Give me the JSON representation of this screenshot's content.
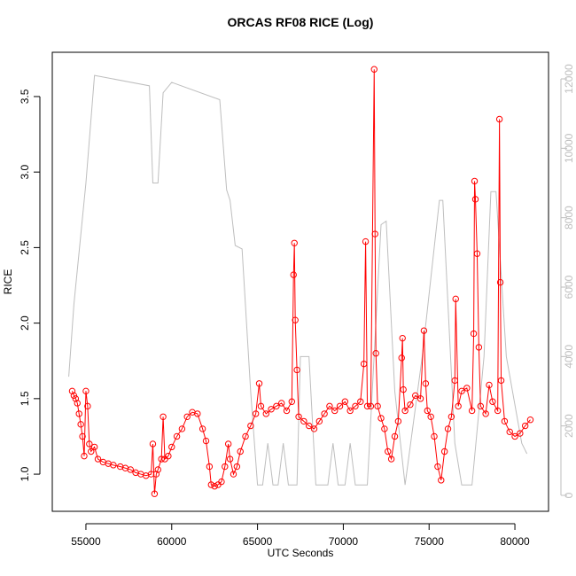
{
  "chart_data": {
    "type": "line",
    "title": "ORCAS RF08 RICE (Log)",
    "x_label": "UTC Seconds",
    "y_label": "RICE",
    "xlim": [
      53040,
      81960
    ],
    "ylim": [
      0.754,
      3.793
    ],
    "y2lim": [
      -460,
      12766
    ],
    "xticks": [
      55000,
      60000,
      65000,
      70000,
      75000,
      80000
    ],
    "yticks": [
      {
        "value": 1,
        "label": "1.0"
      },
      1.5,
      {
        "value": 2,
        "label": "2.0"
      },
      2.5,
      {
        "value": 3,
        "label": "3.0"
      },
      3.5
    ],
    "y2ticks": [
      0,
      2000,
      4000,
      6000,
      8000,
      10000,
      12000
    ],
    "series": [
      {
        "color": "#bebebe",
        "axis": "y2",
        "x": [
          54000,
          54300,
          55000,
          55500,
          58700,
          58900,
          59200,
          59500,
          60000,
          62800,
          63200,
          63400,
          63700,
          64100,
          64600,
          65000,
          65300,
          65600,
          65900,
          66200,
          66500,
          66800,
          67300,
          67500,
          68000,
          68400,
          69100,
          69400,
          69700,
          70100,
          70400,
          70700,
          71400,
          72200,
          72500,
          73000,
          73600,
          74600,
          75600,
          75800,
          76500,
          76900,
          77500,
          78200,
          78600,
          78900,
          79500,
          80400,
          80700
        ],
        "values": [
          3420,
          5500,
          9000,
          12100,
          11800,
          9000,
          9000,
          11600,
          11900,
          11400,
          8800,
          8500,
          7200,
          7100,
          3000,
          300,
          300,
          1500,
          300,
          300,
          1500,
          300,
          300,
          4000,
          4000,
          300,
          300,
          1500,
          300,
          300,
          1500,
          300,
          300,
          7800,
          7900,
          3000,
          300,
          4000,
          8500,
          8500,
          1500,
          300,
          300,
          4000,
          8750,
          8750,
          4000,
          1500,
          1200
        ]
      },
      {
        "color": "#ff0000",
        "axis": "y",
        "x": [
          54200,
          54300,
          54400,
          54500,
          54600,
          54700,
          54800,
          54900,
          55000,
          55100,
          55200,
          55300,
          55500,
          55700,
          56000,
          56300,
          56600,
          57000,
          57300,
          57600,
          57900,
          58200,
          58500,
          58800,
          58900,
          59000,
          59100,
          59200,
          59400,
          59500,
          59600,
          59800,
          60000,
          60300,
          60600,
          60900,
          61200,
          61500,
          61800,
          62000,
          62200,
          62300,
          62500,
          62700,
          62900,
          63100,
          63300,
          63400,
          63600,
          63800,
          64000,
          64300,
          64600,
          64900,
          65100,
          65200,
          65500,
          65800,
          66100,
          66400,
          66700,
          67000,
          67100,
          67150,
          67200,
          67300,
          67400,
          67700,
          68000,
          68300,
          68600,
          68900,
          69200,
          69500,
          69800,
          70100,
          70400,
          70700,
          71000,
          71200,
          71300,
          71400,
          71600,
          71800,
          71850,
          71900,
          72000,
          72200,
          72400,
          72600,
          72800,
          73000,
          73200,
          73400,
          73450,
          73500,
          73600,
          73900,
          74200,
          74500,
          74700,
          74800,
          74900,
          75100,
          75300,
          75500,
          75700,
          75900,
          76100,
          76300,
          76500,
          76550,
          76700,
          76900,
          77200,
          77500,
          77600,
          77650,
          77700,
          77800,
          77900,
          78000,
          78300,
          78500,
          78700,
          79000,
          79100,
          79150,
          79200,
          79400,
          79700,
          80000,
          80300,
          80600,
          80900
        ],
        "values": [
          1.55,
          1.52,
          1.5,
          1.47,
          1.4,
          1.33,
          1.25,
          1.12,
          1.55,
          1.45,
          1.2,
          1.15,
          1.18,
          1.1,
          1.08,
          1.07,
          1.06,
          1.05,
          1.04,
          1.03,
          1.01,
          1.0,
          0.99,
          1.0,
          1.2,
          0.87,
          1.0,
          1.03,
          1.1,
          1.38,
          1.1,
          1.12,
          1.18,
          1.25,
          1.3,
          1.38,
          1.41,
          1.4,
          1.3,
          1.22,
          1.05,
          0.93,
          0.92,
          0.93,
          0.95,
          1.05,
          1.2,
          1.1,
          1.0,
          1.05,
          1.15,
          1.25,
          1.32,
          1.4,
          1.6,
          1.45,
          1.4,
          1.43,
          1.45,
          1.47,
          1.42,
          1.48,
          2.32,
          2.53,
          2.02,
          1.69,
          1.38,
          1.35,
          1.32,
          1.3,
          1.35,
          1.4,
          1.45,
          1.42,
          1.45,
          1.48,
          1.42,
          1.45,
          1.48,
          1.73,
          2.54,
          1.45,
          1.45,
          3.68,
          2.59,
          1.8,
          1.45,
          1.37,
          1.3,
          1.15,
          1.1,
          1.25,
          1.35,
          1.77,
          1.9,
          1.56,
          1.42,
          1.46,
          1.52,
          1.5,
          1.95,
          1.6,
          1.42,
          1.38,
          1.25,
          1.05,
          0.96,
          1.15,
          1.3,
          1.38,
          1.62,
          2.16,
          1.45,
          1.55,
          1.57,
          1.42,
          1.93,
          2.94,
          2.82,
          2.46,
          1.84,
          1.45,
          1.4,
          1.59,
          1.48,
          1.42,
          3.35,
          2.27,
          1.62,
          1.35,
          1.28,
          1.25,
          1.27,
          1.32,
          1.36
        ]
      }
    ]
  }
}
